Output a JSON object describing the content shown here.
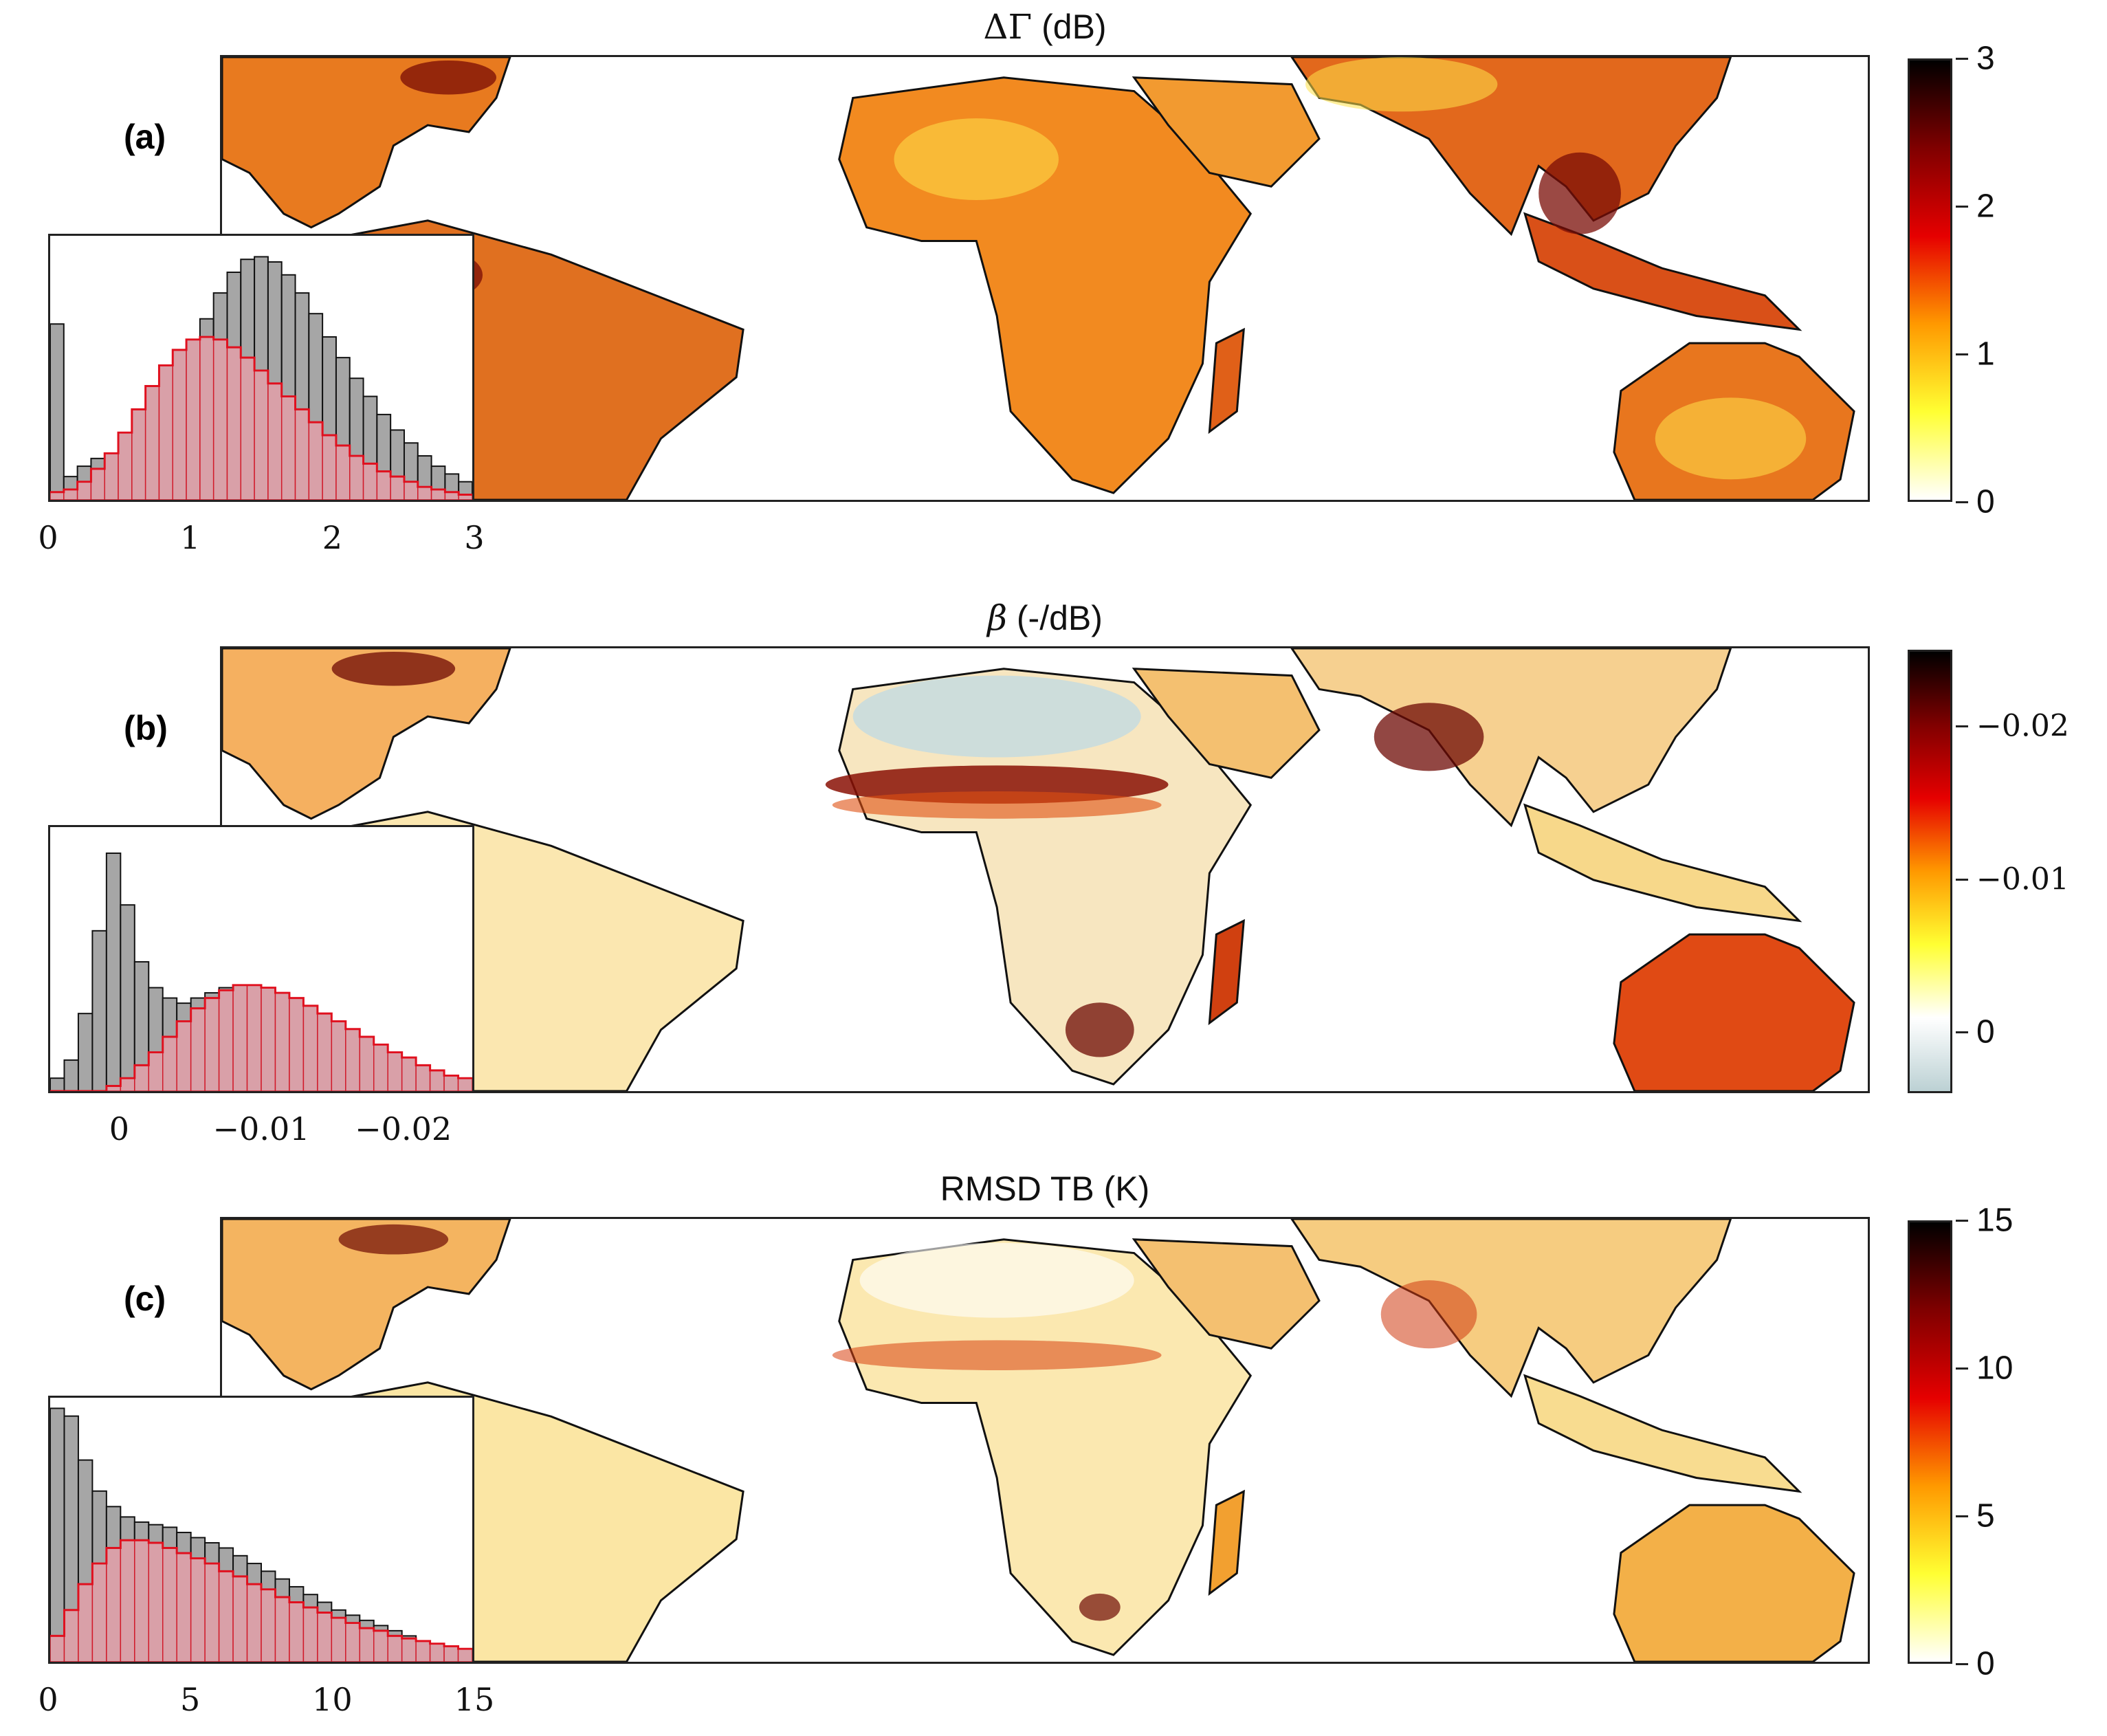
{
  "chart_data": [
    {
      "id": "a",
      "type": "map-with-histogram",
      "panel_label": "(a)",
      "title_symbol": "ΔΓ",
      "title_unit": "(dB)",
      "colormap": "hot (white-yellow-red-black)",
      "colorbar": {
        "range": [
          0,
          3
        ],
        "ticks": [
          {
            "value": 0,
            "label": "0"
          },
          {
            "value": 1,
            "label": "1"
          },
          {
            "value": 2,
            "label": "2"
          },
          {
            "value": 3,
            "label": "3"
          }
        ],
        "colors": [
          "#ffffff",
          "#ffff33",
          "#ff9900",
          "#e60000",
          "#800000",
          "#000000"
        ]
      },
      "histogram": {
        "xlim": [
          0,
          3
        ],
        "xticks": [
          "0",
          "1",
          "2",
          "3"
        ],
        "series": [
          {
            "name": "gray",
            "color": "#a6a6a6",
            "values": [
              0.68,
              0.09,
              0.13,
              0.16,
              0.18,
              0.22,
              0.27,
              0.33,
              0.41,
              0.5,
              0.6,
              0.7,
              0.8,
              0.88,
              0.93,
              0.94,
              0.92,
              0.87,
              0.8,
              0.72,
              0.63,
              0.55,
              0.47,
              0.4,
              0.33,
              0.27,
              0.22,
              0.17,
              0.13,
              0.1,
              0.07
            ]
          },
          {
            "name": "red",
            "color": "#d9a0a8",
            "values": [
              0.03,
              0.04,
              0.07,
              0.12,
              0.18,
              0.26,
              0.35,
              0.44,
              0.52,
              0.58,
              0.62,
              0.63,
              0.62,
              0.59,
              0.55,
              0.5,
              0.45,
              0.4,
              0.35,
              0.3,
              0.25,
              0.21,
              0.17,
              0.14,
              0.11,
              0.09,
              0.07,
              0.05,
              0.04,
              0.03,
              0.02
            ]
          }
        ]
      }
    },
    {
      "id": "b",
      "type": "map-with-histogram",
      "panel_label": "(b)",
      "title_symbol": "β",
      "title_unit": "(-/dB)",
      "colormap": "hot reversed with blue-gray positive end",
      "colorbar": {
        "range": [
          0.004,
          -0.025
        ],
        "ticks": [
          {
            "value": 0,
            "label": "0"
          },
          {
            "value": -0.01,
            "label": "−0.01"
          },
          {
            "value": -0.02,
            "label": "−0.02"
          }
        ],
        "colors": [
          "#bcd1d4",
          "#ffffff",
          "#ffff33",
          "#ff9900",
          "#e60000",
          "#800000",
          "#000000"
        ]
      },
      "histogram": {
        "xlim": [
          0.005,
          -0.025
        ],
        "xticks": [
          "0",
          "−0.01",
          "−0.02"
        ],
        "series": [
          {
            "name": "gray",
            "color": "#a6a6a6",
            "values": [
              0.05,
              0.12,
              0.3,
              0.62,
              0.92,
              0.72,
              0.5,
              0.4,
              0.36,
              0.34,
              0.36,
              0.38,
              0.4,
              0.41,
              0.41,
              0.4,
              0.38,
              0.36,
              0.33,
              0.3,
              0.27,
              0.24,
              0.21,
              0.18,
              0.15,
              0.13,
              0.1,
              0.08,
              0.06,
              0.05
            ]
          },
          {
            "name": "red",
            "color": "#d9a0a8",
            "values": [
              0.0,
              0.0,
              0.0,
              0.0,
              0.02,
              0.05,
              0.1,
              0.15,
              0.21,
              0.27,
              0.32,
              0.36,
              0.39,
              0.41,
              0.41,
              0.4,
              0.38,
              0.36,
              0.33,
              0.3,
              0.27,
              0.24,
              0.21,
              0.18,
              0.15,
              0.13,
              0.1,
              0.08,
              0.06,
              0.05
            ]
          }
        ]
      }
    },
    {
      "id": "c",
      "type": "map-with-histogram",
      "panel_label": "(c)",
      "title_symbol": "",
      "title_unit": "RMSD TB (K)",
      "colormap": "hot (white-yellow-red-black)",
      "colorbar": {
        "range": [
          0,
          15
        ],
        "ticks": [
          {
            "value": 0,
            "label": "0"
          },
          {
            "value": 5,
            "label": "5"
          },
          {
            "value": 10,
            "label": "10"
          },
          {
            "value": 15,
            "label": "15"
          }
        ],
        "colors": [
          "#ffffff",
          "#ffff33",
          "#ff9900",
          "#e60000",
          "#800000",
          "#000000"
        ]
      },
      "histogram": {
        "xlim": [
          0,
          15
        ],
        "xticks": [
          "0",
          "5",
          "10",
          "15"
        ],
        "series": [
          {
            "name": "gray",
            "color": "#a6a6a6",
            "values": [
              0.98,
              0.95,
              0.78,
              0.66,
              0.6,
              0.56,
              0.54,
              0.53,
              0.52,
              0.5,
              0.48,
              0.46,
              0.44,
              0.41,
              0.38,
              0.35,
              0.32,
              0.29,
              0.26,
              0.23,
              0.2,
              0.18,
              0.16,
              0.14,
              0.12,
              0.1,
              0.08,
              0.07,
              0.06,
              0.05
            ]
          },
          {
            "name": "red",
            "color": "#d9a0a8",
            "values": [
              0.1,
              0.2,
              0.3,
              0.38,
              0.44,
              0.47,
              0.47,
              0.46,
              0.44,
              0.42,
              0.4,
              0.38,
              0.35,
              0.33,
              0.3,
              0.28,
              0.25,
              0.23,
              0.21,
              0.19,
              0.17,
              0.15,
              0.13,
              0.12,
              0.1,
              0.09,
              0.08,
              0.07,
              0.06,
              0.05
            ]
          }
        ]
      }
    }
  ]
}
